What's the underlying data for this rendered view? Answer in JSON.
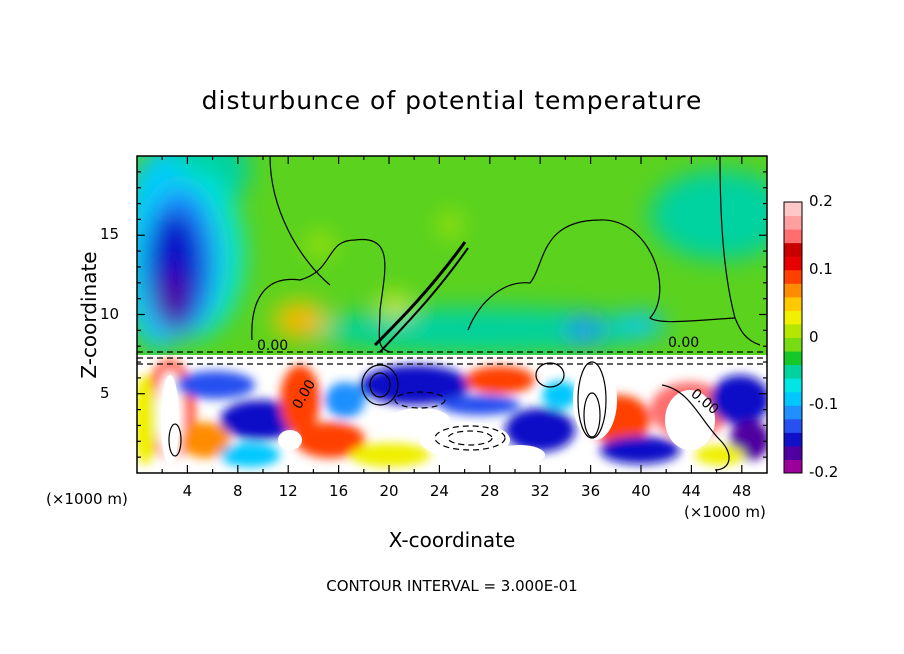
{
  "chart_data": {
    "type": "heatmap",
    "title": "disturbunce of potential temperature",
    "xlabel": "X-coordinate",
    "ylabel": "Z-coordinate",
    "x_unit": "(×1000 m)",
    "x_unit_right": "(×1000 m)",
    "xlim": [
      0,
      50
    ],
    "ylim": [
      0,
      20
    ],
    "x_ticks": [
      4,
      8,
      12,
      16,
      20,
      24,
      28,
      32,
      36,
      40,
      44,
      48
    ],
    "y_ticks": [
      5,
      10,
      15
    ],
    "colorbar": {
      "range": [
        -0.2,
        0.2
      ],
      "ticks": [
        "0.2",
        "0.1",
        "0",
        "-0.1",
        "-0.2"
      ],
      "colors": [
        "#9b009b",
        "#5000a0",
        "#1010c8",
        "#2850f0",
        "#1e90ff",
        "#00c8ff",
        "#00e6e6",
        "#00d2a0",
        "#14c828",
        "#78dc14",
        "#b4e600",
        "#f0f000",
        "#ffc800",
        "#ff8c00",
        "#ff4000",
        "#e60000",
        "#c80000",
        "#ff6e6e",
        "#ffa0a0",
        "#ffc8c8"
      ]
    },
    "contour_labels": [
      "0.00",
      "0.00",
      "0.00",
      "0.00"
    ],
    "contour_interval_text": "CONTOUR INTERVAL = 3.000E-01"
  }
}
